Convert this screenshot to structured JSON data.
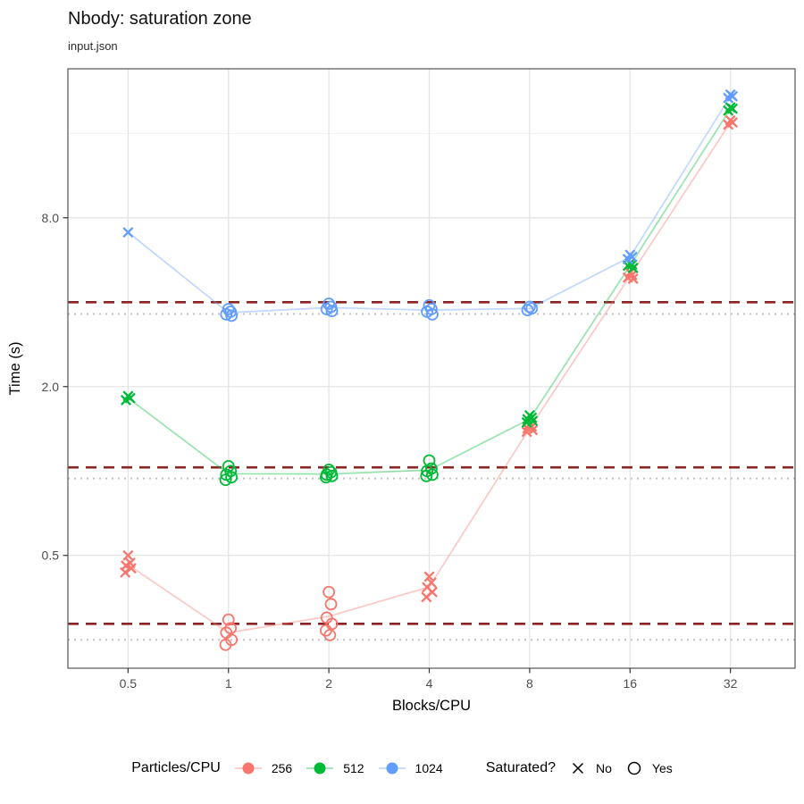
{
  "title": "Nbody: saturation zone",
  "subtitle": "input.json",
  "legend": {
    "color": {
      "title": "Particles/CPU",
      "items": [
        {
          "label": "256",
          "color": "#F8766D"
        },
        {
          "label": "512",
          "color": "#00BA38"
        },
        {
          "label": "1024",
          "color": "#619CFF"
        }
      ]
    },
    "shape": {
      "title": "Saturated?",
      "items": [
        {
          "label": "No",
          "shape": "x"
        },
        {
          "label": "Yes",
          "shape": "circle"
        }
      ]
    }
  },
  "chart_data": {
    "type": "scatter",
    "title": "Nbody: saturation zone",
    "subtitle": "input.json",
    "xlabel": "Blocks/CPU",
    "ylabel": "Time (s)",
    "x_scale": "log2",
    "y_scale": "log2",
    "x_breaks": [
      0.5,
      1,
      2,
      4,
      8,
      16,
      32
    ],
    "x_tick_labels": [
      "0.5",
      "1",
      "2",
      "4",
      "8",
      "16",
      "32"
    ],
    "y_breaks": [
      0.5,
      2.0,
      8.0
    ],
    "y_tick_labels": [
      "0.5",
      "2.0",
      "8.0"
    ],
    "y_minor_breaks": [
      1,
      4,
      16
    ],
    "x_domain": [
      0.33,
      50
    ],
    "y_domain": [
      0.198,
      27.2
    ],
    "grid": true,
    "legend_position": "bottom",
    "series": [
      {
        "name": "256",
        "color": "#F8766D",
        "points": [
          {
            "x": 0.5,
            "saturated": "No",
            "runs": [
              0.5,
              0.47,
              0.46,
              0.45,
              0.435
            ]
          },
          {
            "x": 1,
            "saturated": "Yes",
            "runs": [
              0.295,
              0.275,
              0.265,
              0.25,
              0.24
            ]
          },
          {
            "x": 2,
            "saturated": "Yes",
            "runs": [
              0.37,
              0.335,
              0.3,
              0.285,
              0.27,
              0.26
            ]
          },
          {
            "x": 4,
            "saturated": "No",
            "runs": [
              0.42,
              0.4,
              0.385,
              0.37,
              0.355
            ]
          },
          {
            "x": 8,
            "saturated": "No",
            "runs": [
              1.47,
              1.44,
              1.42,
              1.4,
              1.38
            ]
          },
          {
            "x": 16,
            "saturated": "No",
            "runs": [
              5.1,
              5.0,
              4.9,
              4.85
            ]
          },
          {
            "x": 32,
            "saturated": "No",
            "runs": [
              17.8,
              17.5,
              17.2
            ]
          }
        ]
      },
      {
        "name": "512",
        "color": "#00BA38",
        "points": [
          {
            "x": 0.5,
            "saturated": "No",
            "runs": [
              1.85,
              1.82,
              1.79
            ]
          },
          {
            "x": 1,
            "saturated": "Yes",
            "runs": [
              1.04,
              1.0,
              0.97,
              0.95,
              0.93
            ]
          },
          {
            "x": 2,
            "saturated": "Yes",
            "runs": [
              1.01,
              0.99,
              0.97,
              0.96,
              0.95
            ]
          },
          {
            "x": 4,
            "saturated": "Yes",
            "runs": [
              1.09,
              1.02,
              1.0,
              0.97,
              0.96
            ]
          },
          {
            "x": 8,
            "saturated": "No",
            "runs": [
              1.58,
              1.55,
              1.53,
              1.51,
              1.49
            ]
          },
          {
            "x": 16,
            "saturated": "No",
            "runs": [
              5.5,
              5.45,
              5.4,
              5.3
            ]
          },
          {
            "x": 32,
            "saturated": "No",
            "runs": [
              19.8,
              19.6,
              19.3
            ]
          }
        ]
      },
      {
        "name": "1024",
        "color": "#619CFF",
        "points": [
          {
            "x": 0.5,
            "saturated": "No",
            "runs": [
              7.1
            ]
          },
          {
            "x": 1,
            "saturated": "Yes",
            "runs": [
              3.78,
              3.7,
              3.62,
              3.58
            ]
          },
          {
            "x": 2,
            "saturated": "Yes",
            "runs": [
              3.95,
              3.85,
              3.78,
              3.72
            ]
          },
          {
            "x": 4,
            "saturated": "Yes",
            "runs": [
              3.9,
              3.78,
              3.7,
              3.62
            ]
          },
          {
            "x": 8,
            "saturated": "Yes",
            "runs": [
              3.85,
              3.8,
              3.75
            ]
          },
          {
            "x": 16,
            "saturated": "No",
            "runs": [
              5.9,
              5.8,
              5.7
            ]
          },
          {
            "x": 32,
            "saturated": "No",
            "runs": [
              22.0,
              21.7,
              21.4
            ]
          }
        ]
      }
    ],
    "reference_lines": {
      "dashed": {
        "color": "#8B2424",
        "style": "dashed",
        "y_values": [
          0.285,
          1.03,
          4.0
        ]
      },
      "dotted": {
        "color": "#C2C2C2",
        "style": "dotted",
        "y_values": [
          0.25,
          0.94,
          3.63
        ]
      }
    }
  },
  "theme": {
    "grid_major": "#E4E4E4",
    "grid_minor": "#F0F0F0",
    "panel_border": "#555555",
    "tick_color": "#333333",
    "tick_label_color": "#4D4D4D",
    "axis_title_color": "#000000"
  }
}
